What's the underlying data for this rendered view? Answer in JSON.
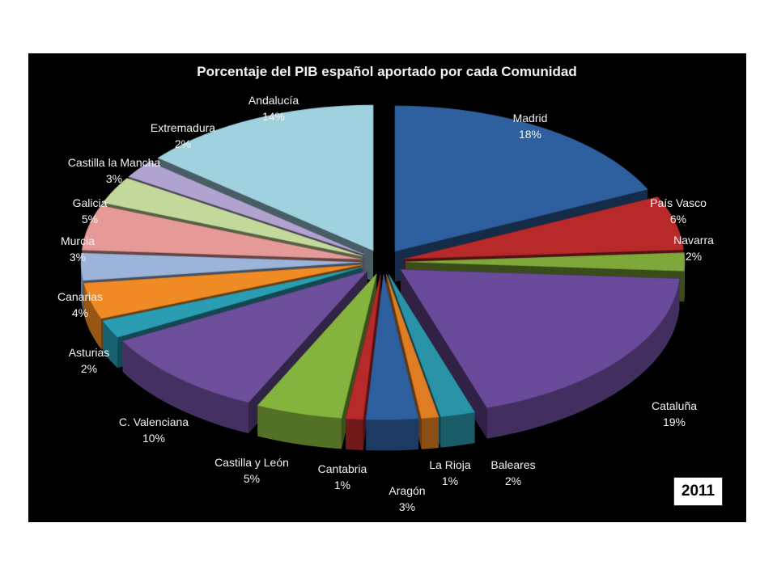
{
  "chart_data": {
    "type": "pie",
    "title": "Porcentaje del PIB español aportado por cada Comunidad",
    "badge": "2011",
    "slices": [
      {
        "label": "Madrid",
        "value": 18,
        "value_label": "18%",
        "color": "#2e5f9e"
      },
      {
        "label": "País Vasco",
        "value": 6,
        "value_label": "6%",
        "color": "#b8292a"
      },
      {
        "label": "Navarra",
        "value": 2,
        "value_label": "2%",
        "color": "#7fa83a"
      },
      {
        "label": "Cataluña",
        "value": 19,
        "value_label": "19%",
        "color": "#6a4a9a"
      },
      {
        "label": "Baleares",
        "value": 2,
        "value_label": "2%",
        "color": "#2a93a8"
      },
      {
        "label": "La Rioja",
        "value": 1,
        "value_label": "1%",
        "color": "#e07d22"
      },
      {
        "label": "Aragón",
        "value": 3,
        "value_label": "3%",
        "color": "#2e5f9e"
      },
      {
        "label": "Cantabria",
        "value": 1,
        "value_label": "1%",
        "color": "#b8292a"
      },
      {
        "label": "Castilla y León",
        "value": 5,
        "value_label": "5%",
        "color": "#84b43e"
      },
      {
        "label": "C. Valenciana",
        "value": 10,
        "value_label": "10%",
        "color": "#6d4f9c"
      },
      {
        "label": "Asturias",
        "value": 2,
        "value_label": "2%",
        "color": "#2a9db3"
      },
      {
        "label": "Canarias",
        "value": 4,
        "value_label": "4%",
        "color": "#f08a24"
      },
      {
        "label": "Murcia",
        "value": 3,
        "value_label": "3%",
        "color": "#9db4da"
      },
      {
        "label": "Galicia",
        "value": 5,
        "value_label": "5%",
        "color": "#e59a98"
      },
      {
        "label": "Castilla la Mancha",
        "value": 3,
        "value_label": "3%",
        "color": "#c3d89b"
      },
      {
        "label": "Extremadura",
        "value": 2,
        "value_label": "2%",
        "color": "#b1a3cf"
      },
      {
        "label": "Andalucía",
        "value": 14,
        "value_label": "14%",
        "color": "#9fd1df"
      }
    ]
  }
}
